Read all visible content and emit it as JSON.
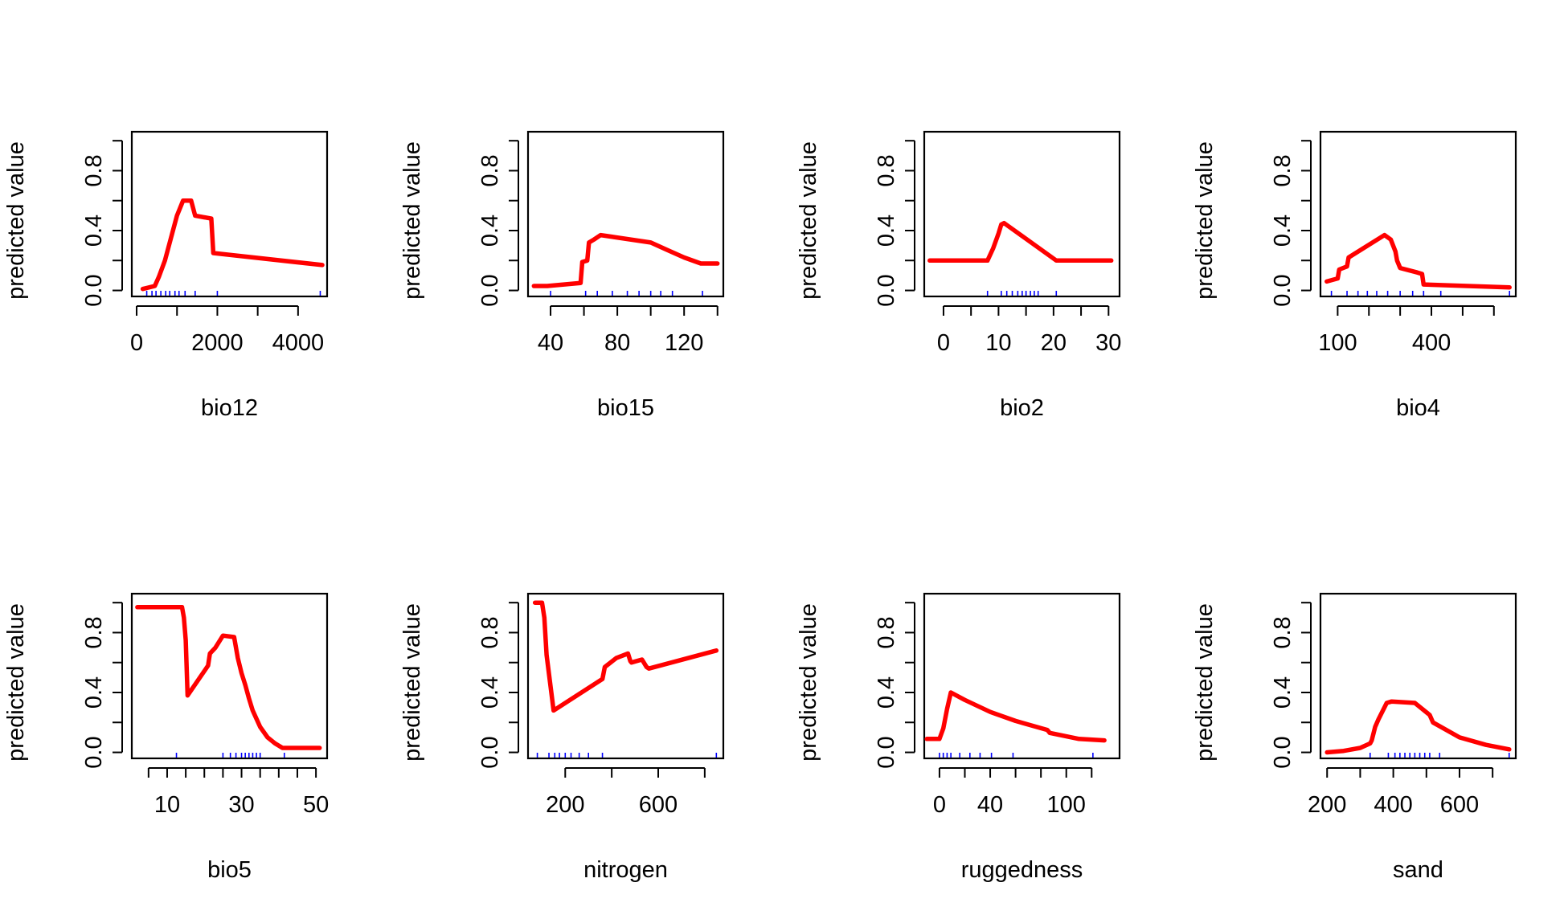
{
  "chart_data": [
    {
      "type": "line",
      "xlabel": "bio12",
      "ylabel": "predicted value",
      "xlim": [
        -120,
        4720
      ],
      "ylim": [
        -0.04,
        1.06
      ],
      "xticks": [
        0,
        1000,
        2000,
        3000,
        4000
      ],
      "xtick_labels": [
        "0",
        "2000",
        "4000"
      ],
      "xtick_label_values": [
        0,
        2000,
        4000
      ],
      "yticks": [
        0,
        0.2,
        0.4,
        0.6,
        0.8,
        1.0
      ],
      "ytick_labels": [
        "0.0",
        "0.4",
        "0.8"
      ],
      "ytick_label_values": [
        0,
        0.4,
        0.8
      ],
      "line_color": "#ff0000",
      "rug_color": "#0000ff",
      "rug": [
        250,
        380,
        480,
        600,
        720,
        820,
        950,
        1050,
        1200,
        1450,
        2000,
        4550
      ],
      "series": [
        {
          "x": [
            150,
            450,
            550,
            700,
            850,
            1000,
            1150,
            1350,
            1450,
            1850,
            1900,
            4600
          ],
          "y": [
            0.01,
            0.03,
            0.09,
            0.2,
            0.35,
            0.5,
            0.6,
            0.6,
            0.5,
            0.48,
            0.25,
            0.17
          ]
        }
      ]
    },
    {
      "type": "line",
      "xlabel": "bio15",
      "ylabel": "predicted value",
      "xlim": [
        26.5,
        143.5
      ],
      "ylim": [
        -0.04,
        1.06
      ],
      "xticks": [
        40,
        60,
        80,
        100,
        120,
        140
      ],
      "xtick_labels": [
        "40",
        "80",
        "120"
      ],
      "xtick_label_values": [
        40,
        80,
        120
      ],
      "yticks": [
        0,
        0.2,
        0.4,
        0.6,
        0.8,
        1.0
      ],
      "ytick_labels": [
        "0.0",
        "0.4",
        "0.8"
      ],
      "ytick_label_values": [
        0,
        0.4,
        0.8
      ],
      "line_color": "#ff0000",
      "rug_color": "#0000ff",
      "rug": [
        40,
        61,
        68,
        77,
        86,
        93,
        100,
        106,
        113,
        131
      ],
      "series": [
        {
          "x": [
            30,
            38,
            48,
            58,
            59,
            62,
            63,
            66,
            70,
            100,
            110,
            120,
            130,
            140
          ],
          "y": [
            0.03,
            0.03,
            0.04,
            0.05,
            0.19,
            0.2,
            0.32,
            0.34,
            0.37,
            0.32,
            0.27,
            0.22,
            0.18,
            0.18
          ]
        }
      ]
    },
    {
      "type": "line",
      "xlabel": "bio2",
      "ylabel": "predicted value",
      "xlim": [
        -3.5,
        32
      ],
      "ylim": [
        -0.04,
        1.06
      ],
      "xticks": [
        0,
        5,
        10,
        15,
        20,
        25,
        30
      ],
      "xtick_labels": [
        "0",
        "10",
        "20",
        "30"
      ],
      "xtick_label_values": [
        0,
        10,
        20,
        30
      ],
      "yticks": [
        0,
        0.2,
        0.4,
        0.6,
        0.8,
        1.0
      ],
      "ytick_labels": [
        "0.0",
        "0.4",
        "0.8"
      ],
      "ytick_label_values": [
        0,
        0.4,
        0.8
      ],
      "line_color": "#ff0000",
      "rug_color": "#0000ff",
      "rug": [
        8,
        10.5,
        11.5,
        12.5,
        13.5,
        14.3,
        15,
        15.8,
        16.5,
        17.2,
        20.5
      ],
      "series": [
        {
          "x": [
            -2.5,
            8,
            9,
            10,
            10.5,
            11,
            20.5,
            30.5
          ],
          "y": [
            0.2,
            0.2,
            0.28,
            0.38,
            0.44,
            0.45,
            0.2,
            0.2
          ]
        }
      ]
    },
    {
      "type": "line",
      "xlabel": "bio4",
      "ylabel": "predicted value",
      "xlim": [
        45,
        670
      ],
      "ylim": [
        -0.04,
        1.06
      ],
      "xticks": [
        100,
        200,
        300,
        400,
        500,
        600
      ],
      "xtick_labels": [
        "100",
        "400"
      ],
      "xtick_label_values": [
        100,
        400
      ],
      "yticks": [
        0,
        0.2,
        0.4,
        0.6,
        0.8,
        1.0
      ],
      "ytick_labels": [
        "0.0",
        "0.4",
        "0.8"
      ],
      "ytick_label_values": [
        0,
        0.4,
        0.8
      ],
      "line_color": "#ff0000",
      "rug_color": "#0000ff",
      "rug": [
        80,
        130,
        165,
        195,
        225,
        260,
        300,
        340,
        375,
        430,
        650
      ],
      "series": [
        {
          "x": [
            65,
            100,
            105,
            130,
            135,
            250,
            270,
            285,
            290,
            300,
            355,
            370,
            375,
            650
          ],
          "y": [
            0.06,
            0.08,
            0.14,
            0.16,
            0.22,
            0.37,
            0.34,
            0.26,
            0.2,
            0.15,
            0.12,
            0.11,
            0.04,
            0.02
          ]
        }
      ]
    },
    {
      "type": "line",
      "xlabel": "bio5",
      "ylabel": "predicted value",
      "xlim": [
        0.5,
        53
      ],
      "ylim": [
        -0.04,
        1.06
      ],
      "xticks": [
        5,
        10,
        15,
        20,
        25,
        30,
        35,
        40,
        45,
        50
      ],
      "xtick_labels": [
        "10",
        "30",
        "50"
      ],
      "xtick_label_values": [
        10,
        30,
        50
      ],
      "yticks": [
        0,
        0.2,
        0.4,
        0.6,
        0.8,
        1.0
      ],
      "ytick_labels": [
        "0.0",
        "0.4",
        "0.8"
      ],
      "ytick_label_values": [
        0,
        0.4,
        0.8
      ],
      "line_color": "#ff0000",
      "rug_color": "#0000ff",
      "rug": [
        12.5,
        25,
        27,
        28.5,
        30,
        31,
        32,
        33,
        34,
        35,
        41.5
      ],
      "series": [
        {
          "x": [
            2,
            14,
            14.5,
            15,
            15.5,
            21,
            21.5,
            23,
            25,
            28,
            29,
            30,
            31,
            32,
            33,
            35,
            37,
            39,
            41,
            51
          ],
          "y": [
            0.97,
            0.97,
            0.9,
            0.75,
            0.38,
            0.58,
            0.66,
            0.7,
            0.78,
            0.77,
            0.63,
            0.53,
            0.45,
            0.36,
            0.28,
            0.17,
            0.1,
            0.06,
            0.03,
            0.03
          ]
        }
      ]
    },
    {
      "type": "line",
      "xlabel": "nitrogen",
      "ylabel": "predicted value",
      "xlim": [
        40,
        880
      ],
      "ylim": [
        -0.04,
        1.06
      ],
      "xticks": [
        200,
        400,
        600,
        800
      ],
      "xtick_labels": [
        "200",
        "600"
      ],
      "xtick_label_values": [
        200,
        600
      ],
      "yticks": [
        0,
        0.2,
        0.4,
        0.6,
        0.8,
        1.0
      ],
      "ytick_labels": [
        "0.0",
        "0.4",
        "0.8"
      ],
      "ytick_label_values": [
        0,
        0.4,
        0.8
      ],
      "line_color": "#ff0000",
      "rug_color": "#0000ff",
      "rug": [
        80,
        130,
        155,
        175,
        200,
        225,
        260,
        300,
        360,
        850
      ],
      "series": [
        {
          "x": [
            70,
            100,
            110,
            120,
            150,
            360,
            370,
            420,
            470,
            480,
            485,
            530,
            550,
            560,
            850
          ],
          "y": [
            1.0,
            1.0,
            0.9,
            0.65,
            0.28,
            0.49,
            0.57,
            0.63,
            0.66,
            0.61,
            0.6,
            0.62,
            0.57,
            0.56,
            0.68
          ]
        }
      ]
    },
    {
      "type": "line",
      "xlabel": "ruggedness",
      "ylabel": "predicted value",
      "xlim": [
        -12,
        142
      ],
      "ylim": [
        -0.04,
        1.06
      ],
      "xticks": [
        0,
        20,
        40,
        60,
        80,
        100,
        120
      ],
      "xtick_labels": [
        "0",
        "40",
        "100"
      ],
      "xtick_label_values": [
        0,
        40,
        100
      ],
      "yticks": [
        0,
        0.2,
        0.4,
        0.6,
        0.8,
        1.0
      ],
      "ytick_labels": [
        "0.0",
        "0.4",
        "0.8"
      ],
      "ytick_label_values": [
        0,
        0.4,
        0.8
      ],
      "line_color": "#ff0000",
      "rug_color": "#0000ff",
      "rug": [
        0,
        3,
        6,
        9,
        16,
        24,
        32,
        41,
        58,
        121
      ],
      "series": [
        {
          "x": [
            -10,
            0,
            3,
            6,
            9,
            20,
            40,
            60,
            85,
            87,
            110,
            130
          ],
          "y": [
            0.09,
            0.09,
            0.16,
            0.29,
            0.4,
            0.35,
            0.27,
            0.21,
            0.15,
            0.13,
            0.09,
            0.08
          ]
        }
      ]
    },
    {
      "type": "line",
      "xlabel": "sand",
      "ylabel": "predicted value",
      "xlim": [
        180,
        770
      ],
      "ylim": [
        -0.04,
        1.06
      ],
      "xticks": [
        200,
        300,
        400,
        500,
        600,
        700
      ],
      "xtick_labels": [
        "200",
        "400",
        "600"
      ],
      "xtick_label_values": [
        200,
        400,
        600
      ],
      "yticks": [
        0,
        0.2,
        0.4,
        0.6,
        0.8,
        1.0
      ],
      "ytick_labels": [
        "0.0",
        "0.4",
        "0.8"
      ],
      "ytick_label_values": [
        0,
        0.4,
        0.8
      ],
      "line_color": "#ff0000",
      "rug_color": "#0000ff",
      "rug": [
        330,
        385,
        405,
        420,
        435,
        450,
        465,
        480,
        495,
        510,
        540,
        750
      ],
      "series": [
        {
          "x": [
            200,
            250,
            300,
            320,
            330,
            335,
            345,
            355,
            380,
            395,
            465,
            510,
            520,
            600,
            680,
            750
          ],
          "y": [
            0,
            0.01,
            0.03,
            0.05,
            0.06,
            0.08,
            0.17,
            0.22,
            0.33,
            0.34,
            0.33,
            0.25,
            0.2,
            0.1,
            0.05,
            0.02
          ]
        }
      ]
    }
  ]
}
